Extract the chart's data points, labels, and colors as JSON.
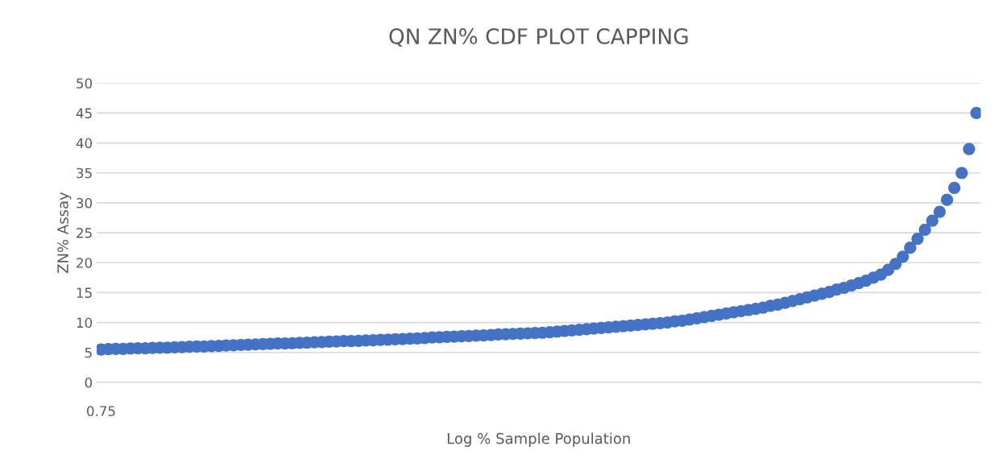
{
  "chart_data": {
    "type": "scatter",
    "title": "QN ZN% CDF PLOT CAPPING",
    "xlabel": "Log % Sample Population",
    "ylabel": "ZN% Assay",
    "categories": [
      null,
      null,
      null,
      null,
      null,
      null,
      null,
      null,
      null,
      null,
      null,
      null,
      null,
      null,
      null,
      null,
      null,
      null,
      null,
      null,
      null,
      null,
      null,
      null,
      null,
      null,
      null,
      null,
      null,
      null,
      null,
      null,
      null,
      null,
      null,
      null,
      null,
      null,
      null,
      null,
      null,
      null,
      null,
      null,
      null,
      null,
      null,
      null,
      null,
      null,
      null,
      null,
      null,
      null,
      null,
      null,
      null,
      null,
      null,
      null,
      null,
      null,
      null,
      null,
      null,
      null,
      null,
      null,
      null,
      null,
      null,
      null,
      null,
      null,
      null,
      null,
      null,
      null,
      null,
      null,
      null,
      null,
      null,
      null,
      null,
      null,
      null,
      null,
      null,
      null,
      null,
      null,
      null,
      null,
      null,
      null,
      null,
      null,
      null,
      null,
      null,
      null,
      null,
      null,
      null,
      null,
      null,
      null,
      null,
      null,
      null,
      null,
      null,
      null,
      null,
      null,
      null,
      null,
      null,
      null
    ],
    "values": [
      5.5,
      5.55,
      5.6,
      5.6,
      5.65,
      5.7,
      5.7,
      5.75,
      5.8,
      5.8,
      5.85,
      5.9,
      5.95,
      6.0,
      6.0,
      6.05,
      6.1,
      6.15,
      6.2,
      6.25,
      6.3,
      6.35,
      6.4,
      6.45,
      6.5,
      6.5,
      6.55,
      6.6,
      6.65,
      6.7,
      6.75,
      6.8,
      6.85,
      6.9,
      6.9,
      6.95,
      7.0,
      7.05,
      7.1,
      7.15,
      7.2,
      7.25,
      7.3,
      7.35,
      7.4,
      7.5,
      7.55,
      7.6,
      7.65,
      7.7,
      7.75,
      7.8,
      7.85,
      7.9,
      8.0,
      8.05,
      8.1,
      8.15,
      8.2,
      8.25,
      8.3,
      8.4,
      8.5,
      8.6,
      8.7,
      8.8,
      8.9,
      9.0,
      9.1,
      9.2,
      9.3,
      9.4,
      9.5,
      9.6,
      9.7,
      9.8,
      9.9,
      10.0,
      10.2,
      10.3,
      10.5,
      10.7,
      10.9,
      11.1,
      11.3,
      11.5,
      11.7,
      11.9,
      12.1,
      12.3,
      12.5,
      12.8,
      13.0,
      13.3,
      13.6,
      13.9,
      14.2,
      14.5,
      14.8,
      15.1,
      15.5,
      15.8,
      16.2,
      16.6,
      17.0,
      17.5,
      18.0,
      18.8,
      19.8,
      21.0,
      22.5,
      24.0,
      25.5,
      27.0,
      28.5,
      30.5,
      32.5,
      35.0,
      39.0,
      45.0
    ],
    "color": "#4472c4",
    "marker": "circle",
    "ylim": [
      0,
      50
    ],
    "yticks": [
      0,
      5,
      10,
      15,
      20,
      25,
      30,
      35,
      40,
      45,
      50
    ],
    "grid": "y",
    "annotations": [
      "0.75"
    ]
  }
}
